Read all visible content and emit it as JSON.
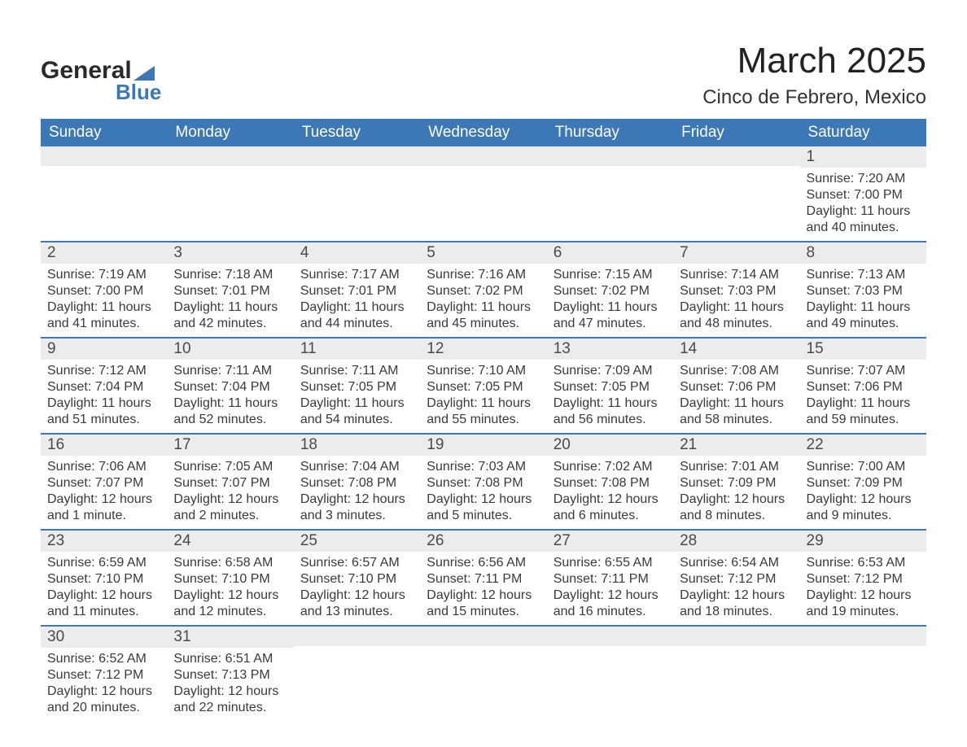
{
  "logo": {
    "word1": "General",
    "word2": "Blue",
    "accent_color": "#3b78b5"
  },
  "title": "March 2025",
  "location": "Cinco de Febrero, Mexico",
  "colors": {
    "header_bg": "#3b78b5",
    "header_text": "#ffffff",
    "daynum_bg": "#ececec",
    "text": "#3a3a3a",
    "border": "#3b78b5",
    "page_bg": "#ffffff"
  },
  "typography": {
    "title_fontsize": 44,
    "location_fontsize": 24,
    "dayheader_fontsize": 19,
    "daynum_fontsize": 19,
    "body_fontsize": 16
  },
  "day_headers": [
    "Sunday",
    "Monday",
    "Tuesday",
    "Wednesday",
    "Thursday",
    "Friday",
    "Saturday"
  ],
  "weeks": [
    [
      null,
      null,
      null,
      null,
      null,
      null,
      {
        "n": "1",
        "sunrise": "7:20 AM",
        "sunset": "7:00 PM",
        "daylight": "11 hours and 40 minutes."
      }
    ],
    [
      {
        "n": "2",
        "sunrise": "7:19 AM",
        "sunset": "7:00 PM",
        "daylight": "11 hours and 41 minutes."
      },
      {
        "n": "3",
        "sunrise": "7:18 AM",
        "sunset": "7:01 PM",
        "daylight": "11 hours and 42 minutes."
      },
      {
        "n": "4",
        "sunrise": "7:17 AM",
        "sunset": "7:01 PM",
        "daylight": "11 hours and 44 minutes."
      },
      {
        "n": "5",
        "sunrise": "7:16 AM",
        "sunset": "7:02 PM",
        "daylight": "11 hours and 45 minutes."
      },
      {
        "n": "6",
        "sunrise": "7:15 AM",
        "sunset": "7:02 PM",
        "daylight": "11 hours and 47 minutes."
      },
      {
        "n": "7",
        "sunrise": "7:14 AM",
        "sunset": "7:03 PM",
        "daylight": "11 hours and 48 minutes."
      },
      {
        "n": "8",
        "sunrise": "7:13 AM",
        "sunset": "7:03 PM",
        "daylight": "11 hours and 49 minutes."
      }
    ],
    [
      {
        "n": "9",
        "sunrise": "7:12 AM",
        "sunset": "7:04 PM",
        "daylight": "11 hours and 51 minutes."
      },
      {
        "n": "10",
        "sunrise": "7:11 AM",
        "sunset": "7:04 PM",
        "daylight": "11 hours and 52 minutes."
      },
      {
        "n": "11",
        "sunrise": "7:11 AM",
        "sunset": "7:05 PM",
        "daylight": "11 hours and 54 minutes."
      },
      {
        "n": "12",
        "sunrise": "7:10 AM",
        "sunset": "7:05 PM",
        "daylight": "11 hours and 55 minutes."
      },
      {
        "n": "13",
        "sunrise": "7:09 AM",
        "sunset": "7:05 PM",
        "daylight": "11 hours and 56 minutes."
      },
      {
        "n": "14",
        "sunrise": "7:08 AM",
        "sunset": "7:06 PM",
        "daylight": "11 hours and 58 minutes."
      },
      {
        "n": "15",
        "sunrise": "7:07 AM",
        "sunset": "7:06 PM",
        "daylight": "11 hours and 59 minutes."
      }
    ],
    [
      {
        "n": "16",
        "sunrise": "7:06 AM",
        "sunset": "7:07 PM",
        "daylight": "12 hours and 1 minute."
      },
      {
        "n": "17",
        "sunrise": "7:05 AM",
        "sunset": "7:07 PM",
        "daylight": "12 hours and 2 minutes."
      },
      {
        "n": "18",
        "sunrise": "7:04 AM",
        "sunset": "7:08 PM",
        "daylight": "12 hours and 3 minutes."
      },
      {
        "n": "19",
        "sunrise": "7:03 AM",
        "sunset": "7:08 PM",
        "daylight": "12 hours and 5 minutes."
      },
      {
        "n": "20",
        "sunrise": "7:02 AM",
        "sunset": "7:08 PM",
        "daylight": "12 hours and 6 minutes."
      },
      {
        "n": "21",
        "sunrise": "7:01 AM",
        "sunset": "7:09 PM",
        "daylight": "12 hours and 8 minutes."
      },
      {
        "n": "22",
        "sunrise": "7:00 AM",
        "sunset": "7:09 PM",
        "daylight": "12 hours and 9 minutes."
      }
    ],
    [
      {
        "n": "23",
        "sunrise": "6:59 AM",
        "sunset": "7:10 PM",
        "daylight": "12 hours and 11 minutes."
      },
      {
        "n": "24",
        "sunrise": "6:58 AM",
        "sunset": "7:10 PM",
        "daylight": "12 hours and 12 minutes."
      },
      {
        "n": "25",
        "sunrise": "6:57 AM",
        "sunset": "7:10 PM",
        "daylight": "12 hours and 13 minutes."
      },
      {
        "n": "26",
        "sunrise": "6:56 AM",
        "sunset": "7:11 PM",
        "daylight": "12 hours and 15 minutes."
      },
      {
        "n": "27",
        "sunrise": "6:55 AM",
        "sunset": "7:11 PM",
        "daylight": "12 hours and 16 minutes."
      },
      {
        "n": "28",
        "sunrise": "6:54 AM",
        "sunset": "7:12 PM",
        "daylight": "12 hours and 18 minutes."
      },
      {
        "n": "29",
        "sunrise": "6:53 AM",
        "sunset": "7:12 PM",
        "daylight": "12 hours and 19 minutes."
      }
    ],
    [
      {
        "n": "30",
        "sunrise": "6:52 AM",
        "sunset": "7:12 PM",
        "daylight": "12 hours and 20 minutes."
      },
      {
        "n": "31",
        "sunrise": "6:51 AM",
        "sunset": "7:13 PM",
        "daylight": "12 hours and 22 minutes."
      },
      null,
      null,
      null,
      null,
      null
    ]
  ],
  "labels": {
    "sunrise": "Sunrise: ",
    "sunset": "Sunset: ",
    "daylight": "Daylight: "
  }
}
